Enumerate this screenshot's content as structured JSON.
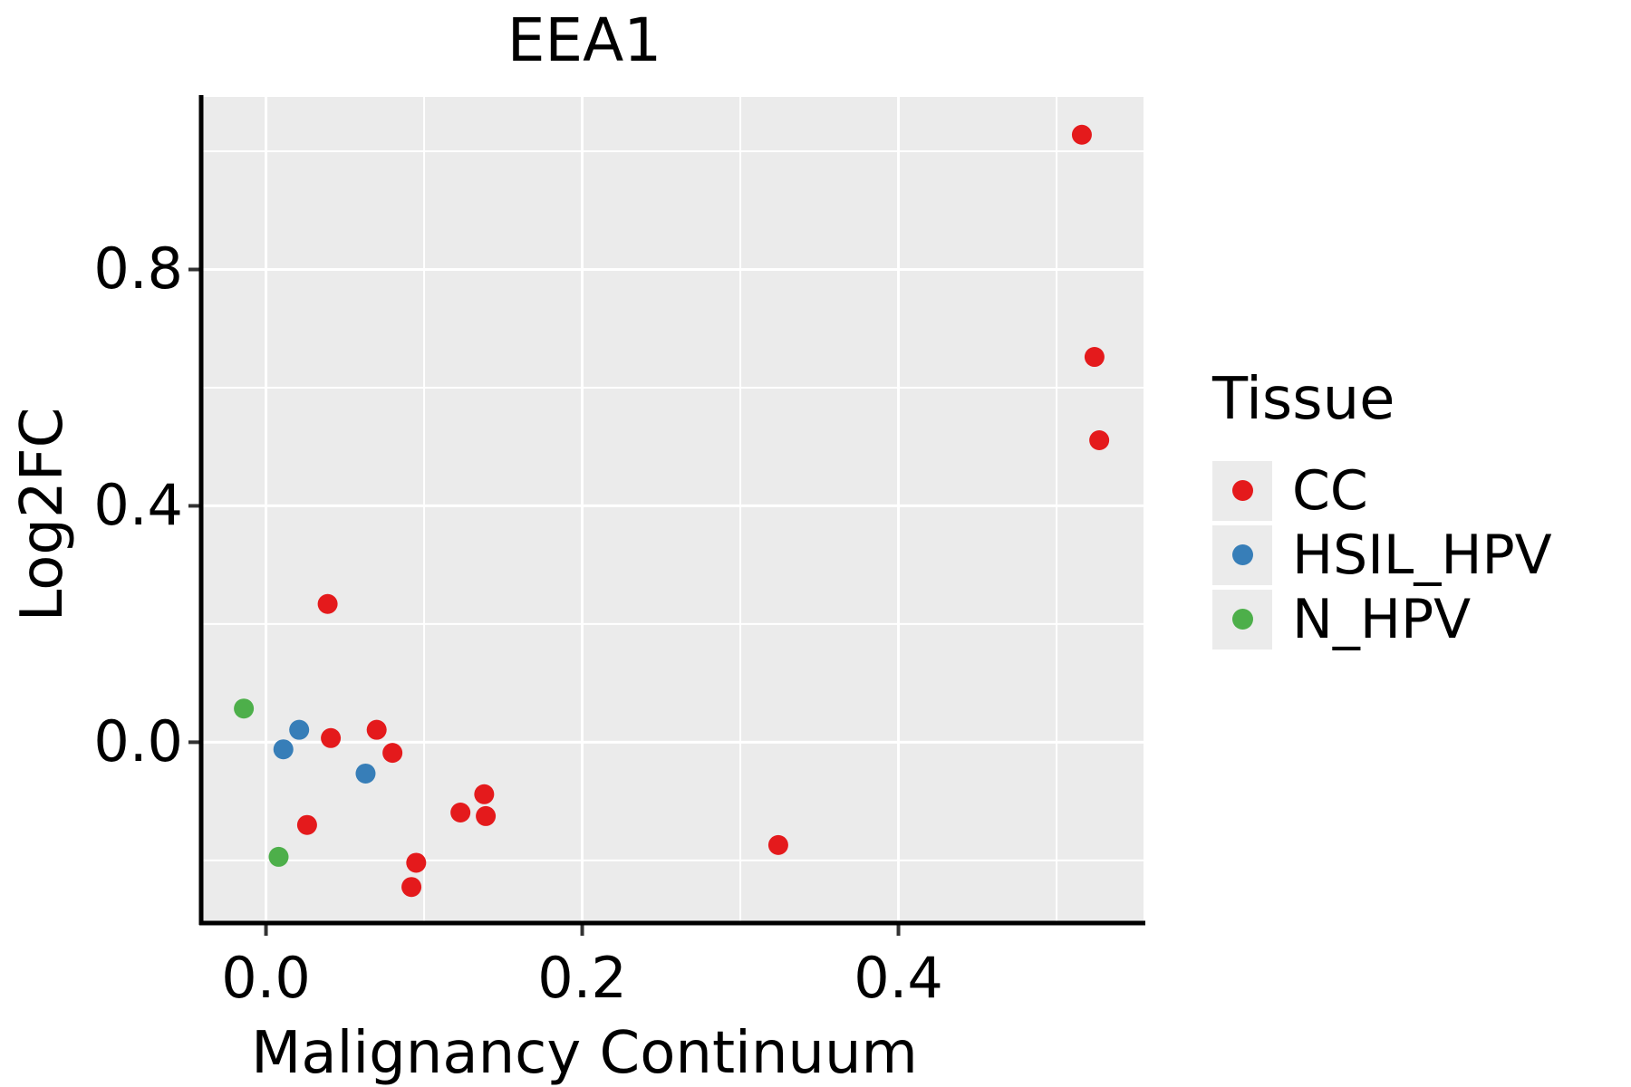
{
  "chart_data": {
    "type": "scatter",
    "title": "EEA1",
    "xlabel": "Malignancy Continuum",
    "ylabel": "Log2FC",
    "legend_title": "Tissue",
    "legend_position": "right",
    "grid": true,
    "panel_background": "#EBEBEB",
    "grid_color": "#FFFFFF",
    "axis_color": "#000000",
    "xlim": [
      -0.041,
      0.555
    ],
    "ylim": [
      -0.306,
      1.092
    ],
    "x_major_ticks": [
      0.0,
      0.2,
      0.4
    ],
    "x_tick_labels": [
      "0.0",
      "0.2",
      "0.4"
    ],
    "x_minor_ticks": [
      0.1,
      0.3,
      0.5
    ],
    "y_major_ticks": [
      0.0,
      0.4,
      0.8
    ],
    "y_tick_labels": [
      "0.0",
      "0.4",
      "0.8"
    ],
    "y_minor_ticks": [
      -0.2,
      0.2,
      0.6,
      1.0
    ],
    "marker_radius": 11,
    "series": [
      {
        "name": "CC",
        "color": "#E41A1C",
        "points": [
          [
            0.516,
            1.028
          ],
          [
            0.524,
            0.652
          ],
          [
            0.527,
            0.511
          ],
          [
            0.039,
            0.234
          ],
          [
            0.041,
            0.007
          ],
          [
            0.07,
            0.021
          ],
          [
            0.08,
            -0.018
          ],
          [
            0.026,
            -0.14
          ],
          [
            0.123,
            -0.119
          ],
          [
            0.138,
            -0.088
          ],
          [
            0.139,
            -0.125
          ],
          [
            0.095,
            -0.204
          ],
          [
            0.092,
            -0.245
          ],
          [
            0.324,
            -0.174
          ]
        ]
      },
      {
        "name": "HSIL_HPV",
        "color": "#377EB8",
        "points": [
          [
            0.021,
            0.021
          ],
          [
            0.011,
            -0.012
          ],
          [
            0.063,
            -0.053
          ]
        ]
      },
      {
        "name": "N_HPV",
        "color": "#4DAF4A",
        "points": [
          [
            -0.014,
            0.057
          ],
          [
            0.008,
            -0.194
          ]
        ]
      }
    ]
  }
}
